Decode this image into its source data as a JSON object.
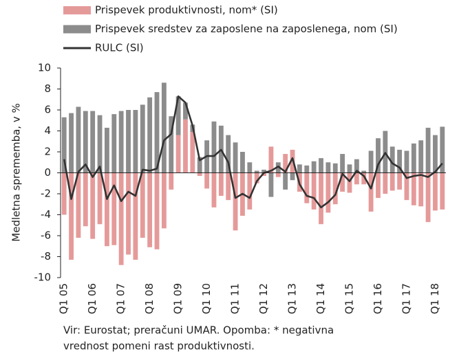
{
  "chart_data": {
    "type": "bar",
    "y_label": "Medletna sprememba, v %",
    "footnote_lines": [
      "Vir: Eurostat; preračuni UMAR. Opomba: * negativna",
      "vrednost pomeni rast produktivnosti."
    ],
    "categories": [
      "Q1 05",
      null,
      null,
      null,
      "Q1 06",
      null,
      null,
      null,
      "Q1 07",
      null,
      null,
      null,
      "Q1 08",
      null,
      null,
      null,
      "Q1 09",
      null,
      null,
      null,
      "Q1 10",
      null,
      null,
      null,
      "Q1 11",
      null,
      null,
      null,
      "Q1 12",
      null,
      null,
      null,
      "Q1 13",
      null,
      null,
      null,
      "Q1 14",
      null,
      null,
      null,
      "Q1 15",
      null,
      null,
      null,
      "Q1 16",
      null,
      null,
      null,
      "Q1 17",
      null,
      null,
      null,
      "Q1 18",
      null
    ],
    "series": [
      {
        "name": "Prispevek produktivnosti, nom* (SI)",
        "color": "#e59a9a",
        "kind": "bar",
        "values": [
          -4.0,
          -8.3,
          -6.2,
          -5.1,
          -6.3,
          -4.9,
          -7.0,
          -6.9,
          -8.8,
          -7.8,
          -8.3,
          -6.2,
          -7.1,
          -7.3,
          -5.3,
          -1.6,
          3.6,
          5.1,
          3.9,
          -0.3,
          -1.5,
          -3.3,
          -2.2,
          -2.6,
          -5.5,
          -4.1,
          -3.5,
          -1.0,
          -0.3,
          2.5,
          -0.4,
          1.8,
          2.2,
          -1.8,
          -2.9,
          -3.5,
          -4.9,
          -3.8,
          -3.0,
          -1.8,
          -1.9,
          -1.1,
          -1.1,
          -3.7,
          -2.4,
          -2.0,
          -1.7,
          -1.6,
          -2.6,
          -3.1,
          -3.2,
          -4.7,
          -3.6,
          -3.5
        ]
      },
      {
        "name": "Prispevek sredstev za zaposlene na zaposlenega, nom (SI)",
        "color": "#8c8c8c",
        "kind": "bar",
        "values": [
          5.3,
          5.7,
          6.3,
          5.9,
          5.9,
          5.5,
          4.3,
          5.6,
          5.9,
          6.0,
          6.0,
          6.5,
          7.2,
          7.7,
          8.6,
          5.4,
          3.7,
          1.6,
          0.7,
          1.5,
          3.1,
          4.9,
          4.5,
          3.6,
          2.9,
          2.0,
          1.0,
          0.2,
          0.3,
          -2.3,
          1.0,
          -1.6,
          -0.7,
          0.8,
          0.7,
          1.1,
          1.4,
          1.0,
          0.9,
          1.8,
          0.8,
          1.3,
          0.2,
          2.1,
          3.3,
          4.0,
          2.5,
          2.2,
          2.1,
          2.8,
          3.1,
          4.3,
          3.6,
          4.4
        ]
      },
      {
        "name": "RULC (SI)",
        "color": "#333333",
        "kind": "line",
        "values": [
          1.3,
          -2.5,
          0.1,
          0.8,
          -0.4,
          0.6,
          -2.5,
          -1.2,
          -2.7,
          -1.8,
          -2.2,
          0.3,
          0.2,
          0.4,
          3.1,
          3.7,
          7.3,
          6.7,
          4.5,
          1.2,
          1.6,
          1.6,
          2.2,
          1.0,
          -2.4,
          -2.0,
          -2.4,
          -0.8,
          0.0,
          0.2,
          0.6,
          0.1,
          1.4,
          -1.1,
          -2.2,
          -2.4,
          -3.3,
          -2.8,
          -2.1,
          -0.1,
          -0.8,
          0.2,
          -0.3,
          -1.5,
          0.8,
          1.9,
          0.9,
          0.5,
          -0.5,
          -0.3,
          -0.2,
          -0.4,
          0.1,
          0.9
        ]
      }
    ],
    "ylim": [
      -10,
      10
    ],
    "yticks": [
      -10,
      -8,
      -6,
      -4,
      -2,
      0,
      2,
      4,
      6,
      8,
      10
    ],
    "grid": false,
    "stacked": true,
    "legend": "top"
  }
}
